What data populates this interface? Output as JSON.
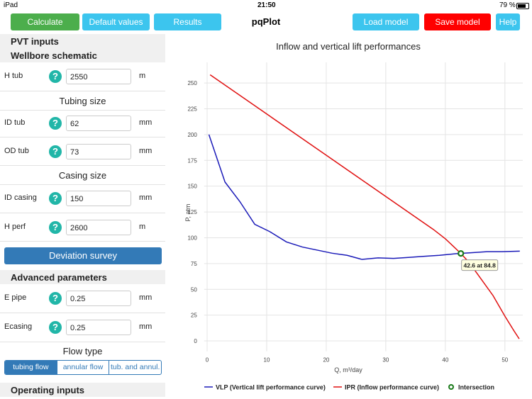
{
  "status_bar": {
    "carrier": "iPad",
    "time": "21:50",
    "battery": "79 %"
  },
  "toolbar": {
    "left_buttons": [
      "Calculate",
      "Default values",
      "Results"
    ],
    "title": "pqPlot",
    "right_buttons": [
      "Load model",
      "Save model",
      "Help"
    ]
  },
  "left_panel": {
    "pvt_inputs": "PVT inputs",
    "wellbore_schematic": "Wellbore schematic",
    "tubing_size": "Tubing size",
    "casing_size": "Casing size",
    "deviation_survey": "Deviation survey",
    "advanced_parameters": "Advanced parameters",
    "flow_type": "Flow type",
    "flow_options": [
      "tubing flow",
      "annular flow",
      "tub. and annul."
    ],
    "operating_inputs": "Operating inputs",
    "help_icon": "?",
    "fields": [
      {
        "label": "H tub",
        "value": "2550",
        "unit": "m"
      },
      {
        "label": "ID tub",
        "value": "62",
        "unit": "mm"
      },
      {
        "label": "OD tub",
        "value": "73",
        "unit": "mm"
      },
      {
        "label": "ID casing",
        "value": "150",
        "unit": "mm"
      },
      {
        "label": "H perf",
        "value": "2600",
        "unit": "m"
      },
      {
        "label": "E pipe",
        "value": "0.25",
        "unit": "mm"
      },
      {
        "label": "Ecasing",
        "value": "0.25",
        "unit": "mm"
      }
    ]
  },
  "chart_data": {
    "type": "line",
    "title": "Inflow and vertical lift performances",
    "x_label": "Q, m³/day",
    "y_label": "P, atm",
    "xlim": [
      -0.5,
      53
    ],
    "ylim": [
      -10,
      270
    ],
    "xticks": [
      0,
      10,
      20,
      30,
      40,
      50
    ],
    "yticks": [
      0,
      25,
      50,
      75,
      100,
      125,
      150,
      175,
      200,
      225,
      250
    ],
    "grid": true,
    "series": [
      {
        "name": "VLP (Vertical lift performance curve)",
        "color": "#1a1ab8",
        "x": [
          0.3,
          3,
          5.5,
          8,
          10.5,
          13.3,
          16,
          18.5,
          21,
          23.5,
          26,
          28.7,
          31.3,
          34,
          36.5,
          39,
          41.7,
          44.3,
          47,
          49.5,
          52.5
        ],
        "values": [
          200,
          154,
          135,
          113,
          106,
          96,
          91,
          88,
          85,
          83,
          79,
          80.5,
          80,
          81,
          82,
          83,
          84.5,
          85.5,
          86.5,
          86.5,
          87
        ]
      },
      {
        "name": "IPR (Inflow performance curve)",
        "color": "#e01010",
        "x": [
          0.5,
          10,
          20,
          30,
          38,
          40,
          42.6,
          44,
          46,
          48,
          50,
          51.5,
          52.4
        ],
        "values": [
          258,
          220,
          180,
          140,
          108,
          99,
          84.8,
          76,
          60,
          44,
          24,
          10,
          2
        ]
      },
      {
        "name": "Intersection",
        "color": "#1a7a1a",
        "x": [
          42.6
        ],
        "values": [
          84.8
        ],
        "value_labels": [
          "42.6 at 84.8"
        ]
      }
    ]
  }
}
